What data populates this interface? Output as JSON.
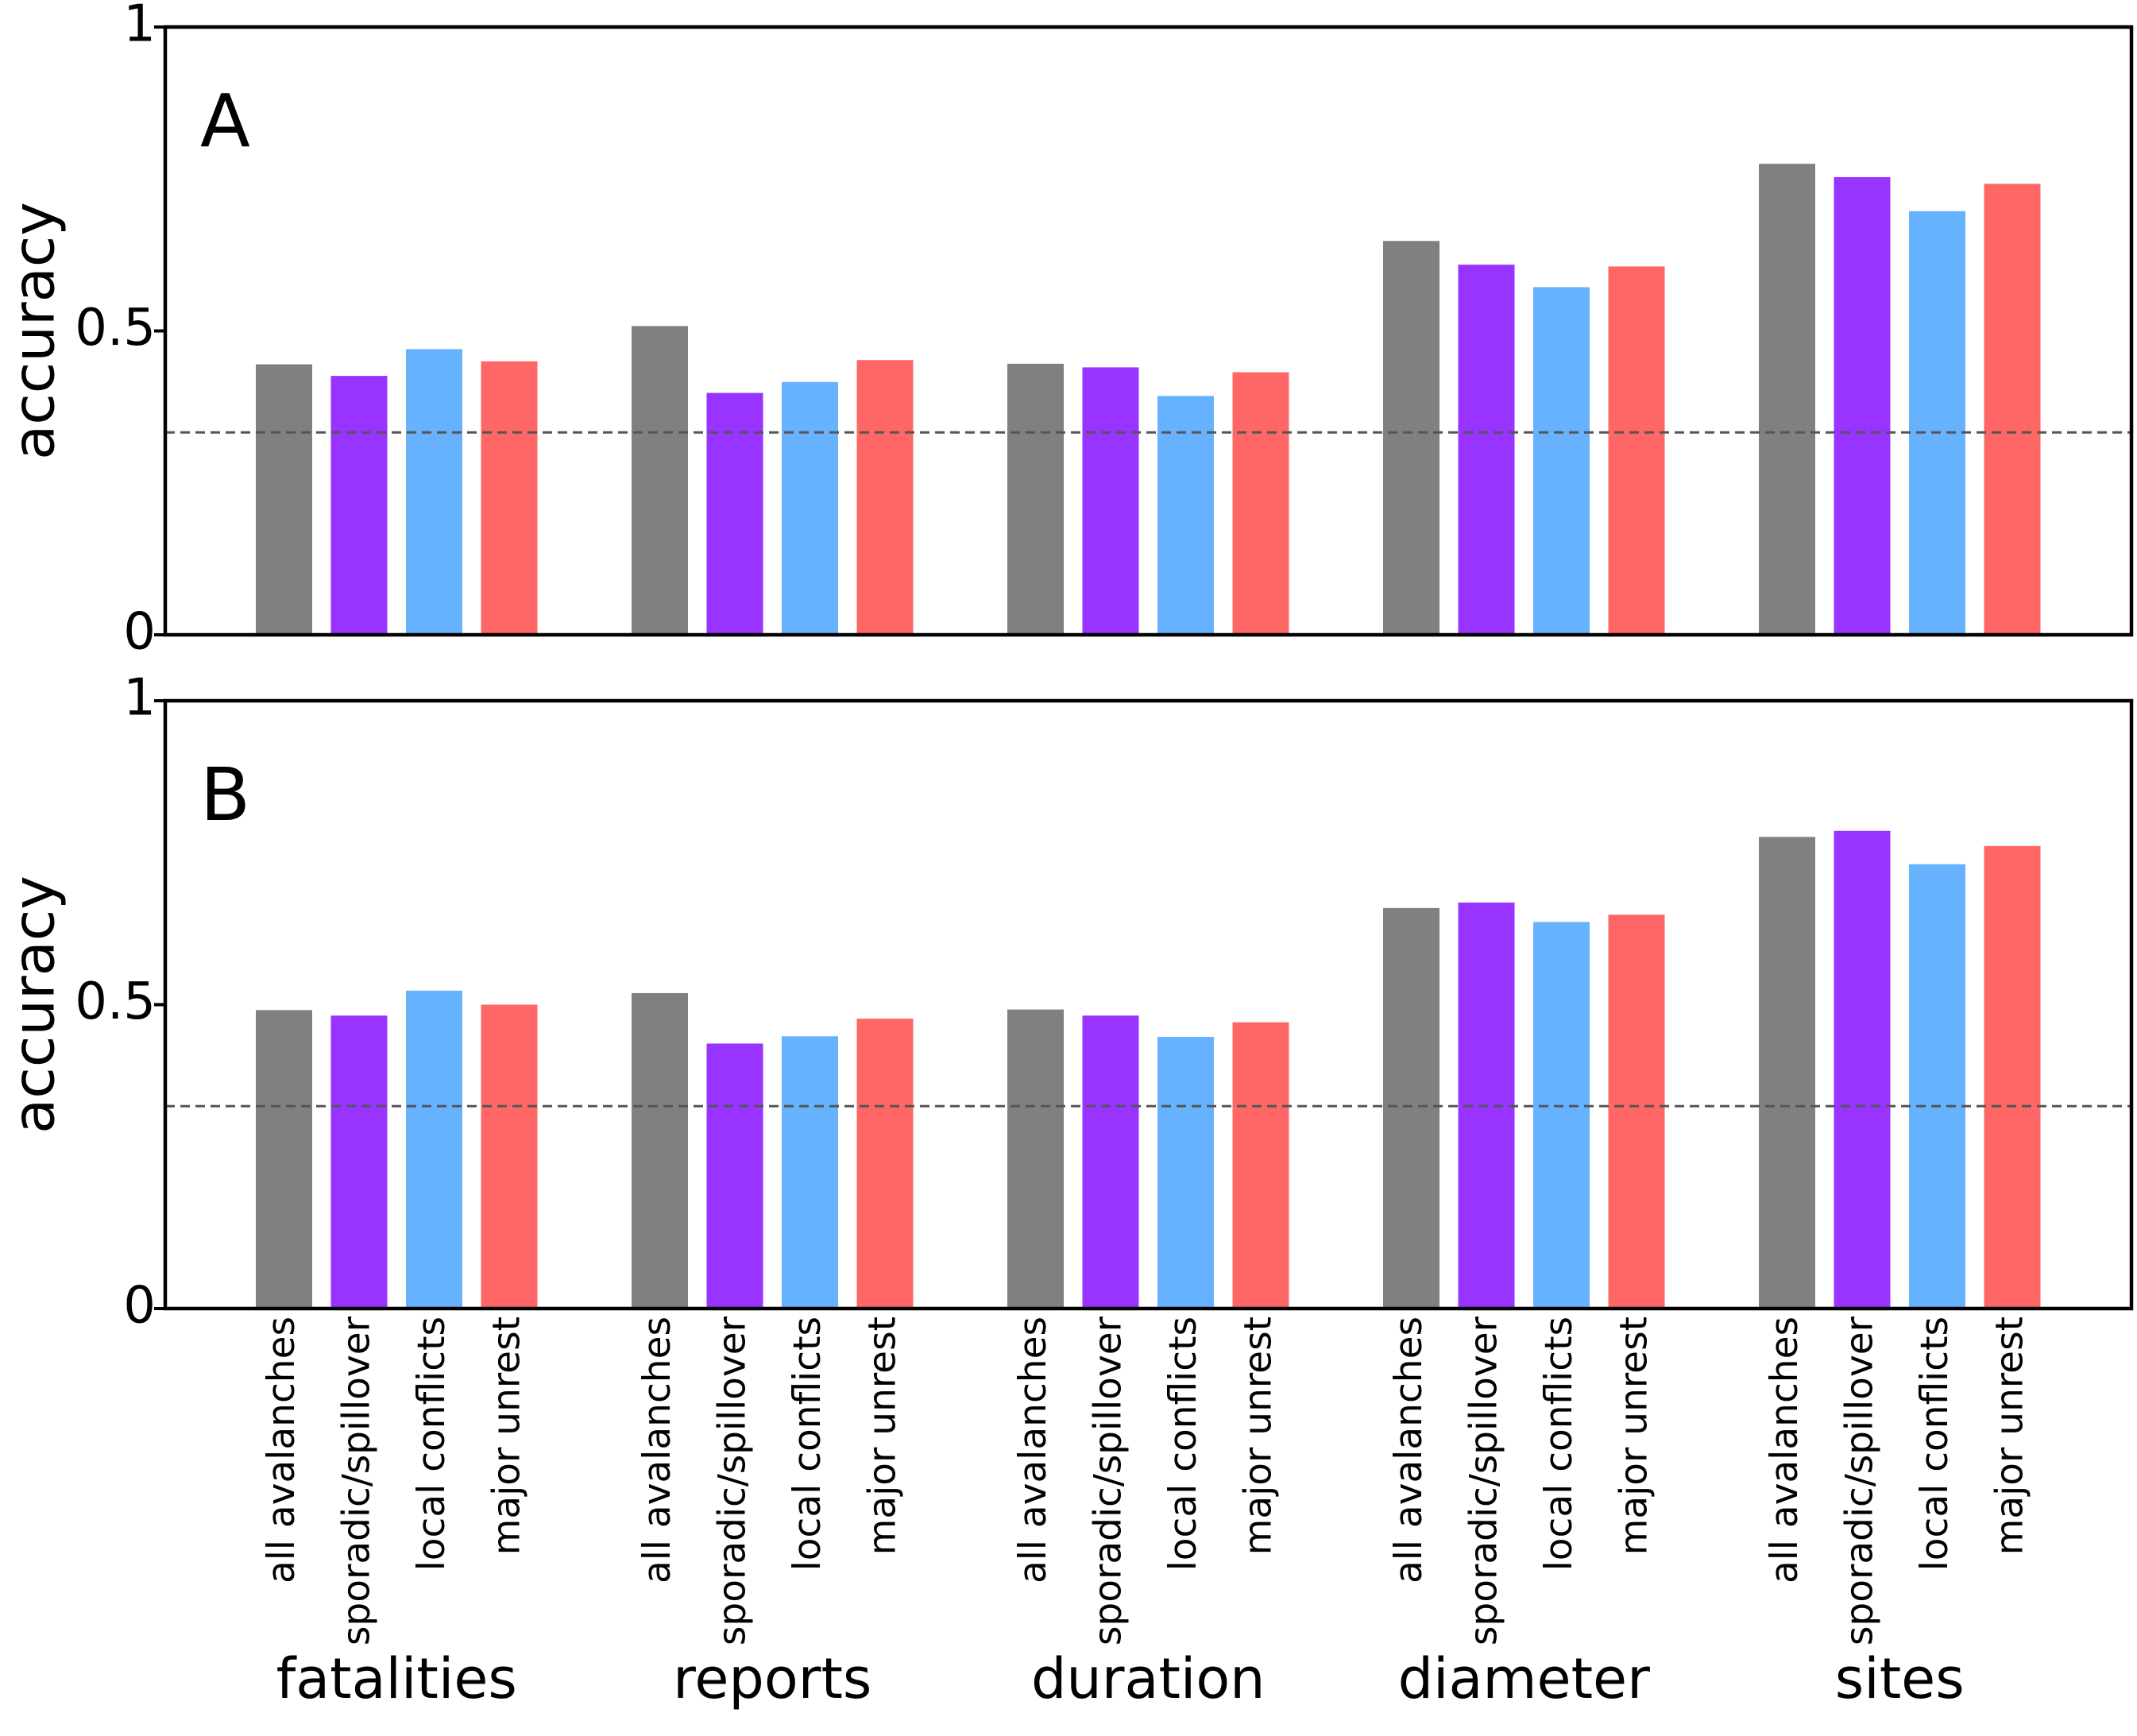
{
  "chart_data": [
    {
      "type": "bar",
      "panel_label": "A",
      "ylabel": "accuracy",
      "ylim": [
        0,
        1
      ],
      "yticks": [
        0,
        0.5,
        1
      ],
      "ytick_labels": [
        "0",
        "0.5",
        "1"
      ],
      "reference_line": 0.333,
      "groups": [
        "fatalities",
        "reports",
        "duration",
        "diameter",
        "sites"
      ],
      "series": [
        {
          "name": "all avalanches",
          "color": "#808080",
          "values": [
            0.445,
            0.508,
            0.446,
            0.648,
            0.775
          ]
        },
        {
          "name": "sporadic/spillover",
          "color": "#9933ff",
          "values": [
            0.426,
            0.398,
            0.44,
            0.609,
            0.753
          ]
        },
        {
          "name": "local conflicts",
          "color": "#66b2ff",
          "values": [
            0.47,
            0.416,
            0.393,
            0.572,
            0.697
          ]
        },
        {
          "name": "major unrest",
          "color": "#ff6666",
          "values": [
            0.45,
            0.452,
            0.432,
            0.606,
            0.742
          ]
        }
      ]
    },
    {
      "type": "bar",
      "panel_label": "B",
      "ylabel": "accuracy",
      "ylim": [
        0,
        1
      ],
      "yticks": [
        0,
        0.5,
        1
      ],
      "ytick_labels": [
        "0",
        "0.5",
        "1"
      ],
      "reference_line": 0.333,
      "groups": [
        "fatalities",
        "reports",
        "duration",
        "diameter",
        "sites"
      ],
      "series": [
        {
          "name": "all avalanches",
          "color": "#808080",
          "values": [
            0.491,
            0.519,
            0.492,
            0.659,
            0.776
          ]
        },
        {
          "name": "sporadic/spillover",
          "color": "#9933ff",
          "values": [
            0.482,
            0.436,
            0.482,
            0.668,
            0.786
          ]
        },
        {
          "name": "local conflicts",
          "color": "#66b2ff",
          "values": [
            0.523,
            0.448,
            0.447,
            0.636,
            0.731
          ]
        },
        {
          "name": "major unrest",
          "color": "#ff6666",
          "values": [
            0.5,
            0.477,
            0.471,
            0.648,
            0.761
          ]
        }
      ]
    }
  ]
}
